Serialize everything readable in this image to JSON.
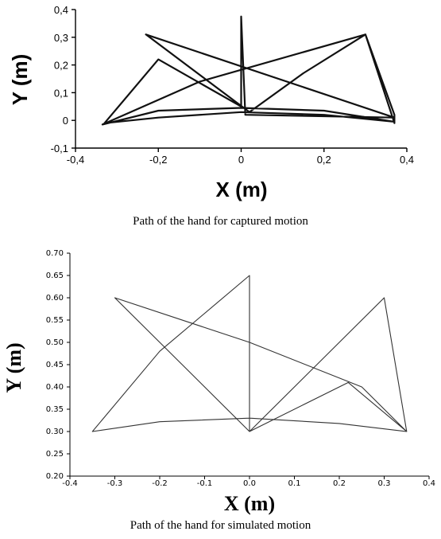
{
  "chart_data": [
    {
      "type": "line",
      "xlabel": "X (m)",
      "ylabel": "Y (m)",
      "xlim": [
        -0.4,
        0.4
      ],
      "ylim": [
        -0.1,
        0.4
      ],
      "xticks": [
        "-0,4",
        "-0,2",
        "0",
        "0,2",
        "0,4"
      ],
      "yticks": [
        "-0,1",
        "0",
        "0,1",
        "0,2",
        "0,3",
        "0,4"
      ],
      "grid": false,
      "series": [
        {
          "x": [
            -0.33,
            -0.2,
            0.0,
            0.2,
            0.37,
            0.2,
            0.0,
            -0.2,
            -0.335,
            -0.1,
            0.3,
            0.37,
            0.37,
            0.3,
            0.15,
            0.02,
            -0.23,
            0.37,
            0.01,
            0.0,
            0.0,
            -0.2,
            -0.33
          ],
          "y": [
            -0.01,
            0.01,
            0.03,
            0.02,
            -0.005,
            0.035,
            0.045,
            0.035,
            -0.015,
            0.14,
            0.31,
            0.02,
            -0.01,
            0.31,
            0.17,
            0.03,
            0.31,
            0.01,
            0.02,
            0.375,
            0.05,
            0.22,
            -0.01
          ]
        }
      ],
      "caption": "Path of the hand for captured motion"
    },
    {
      "type": "line",
      "xlabel": "X (m)",
      "ylabel": "Y (m)",
      "xlim": [
        -0.4,
        0.4
      ],
      "ylim": [
        0.2,
        0.7
      ],
      "xticks": [
        "-0.4",
        "-0.3",
        "-0.2",
        "-0.1",
        "0.0",
        "0.1",
        "0.2",
        "0.3",
        "0.4"
      ],
      "yticks": [
        "0.20",
        "0.25",
        "0.30",
        "0.35",
        "0.40",
        "0.45",
        "0.50",
        "0.55",
        "0.60",
        "0.65",
        "0.70"
      ],
      "grid": false,
      "series": [
        {
          "x": [
            -0.35,
            -0.2,
            0.0,
            0.2,
            0.35,
            0.22,
            0.0,
            0.3,
            0.35,
            0.25,
            0.0,
            -0.3,
            0.0,
            0.0,
            -0.2,
            -0.35
          ],
          "y": [
            0.3,
            0.322,
            0.33,
            0.318,
            0.3,
            0.41,
            0.3,
            0.6,
            0.3,
            0.4,
            0.5,
            0.6,
            0.3,
            0.65,
            0.48,
            0.3
          ]
        }
      ],
      "caption": "Path of the hand for simulated motion"
    }
  ]
}
